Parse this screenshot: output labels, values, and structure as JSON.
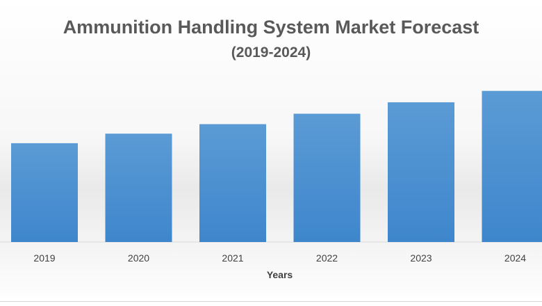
{
  "chart_data": {
    "type": "bar",
    "title": "Ammunition Handling System Market Forecast",
    "subtitle": "(2019-2024)",
    "xlabel": "Years",
    "ylabel": "",
    "categories": [
      "2019",
      "2020",
      "2021",
      "2022",
      "2023",
      "2024"
    ],
    "values": [
      5.2,
      5.7,
      6.2,
      6.75,
      7.35,
      7.95
    ],
    "ylim": [
      0,
      9
    ],
    "grid": false,
    "legend": "none",
    "bar_color_top": "#5b9bd5",
    "bar_color_bottom": "#3e86cc",
    "text_color": "#595959"
  }
}
